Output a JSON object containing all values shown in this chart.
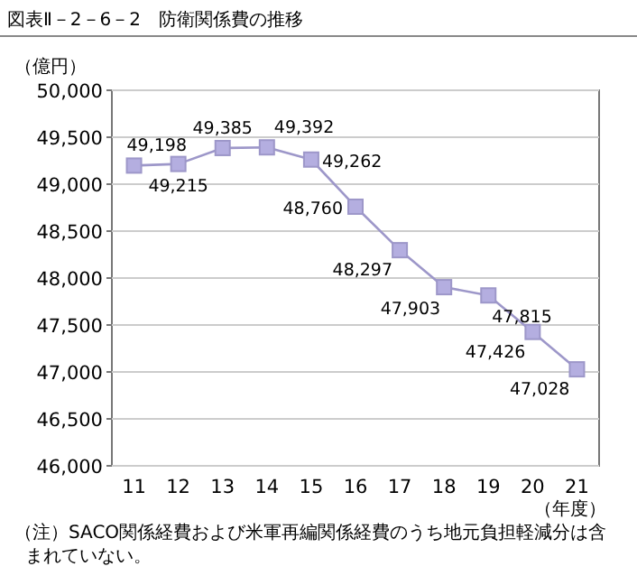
{
  "chart_data": {
    "type": "line",
    "title": "図表Ⅱ－2－6－2　防衛関係費の推移",
    "ylabel": "（億円）",
    "xlabel": "（年度）",
    "categories": [
      "11",
      "12",
      "13",
      "14",
      "15",
      "16",
      "17",
      "18",
      "19",
      "20",
      "21"
    ],
    "series": [
      {
        "color": "#9d97c9",
        "values": [
          49198,
          49215,
          49385,
          49392,
          49262,
          48760,
          48297,
          47903,
          47815,
          47426,
          47028
        ]
      }
    ],
    "ylim": [
      46000,
      50000
    ],
    "yticks": [
      {
        "value": 46000,
        "label": "46,000"
      },
      {
        "value": 46500,
        "label": "46,500"
      },
      {
        "value": 47000,
        "label": "47,000"
      },
      {
        "value": 47500,
        "label": "47,500"
      },
      {
        "value": 48000,
        "label": "48,000"
      },
      {
        "value": 48500,
        "label": "48,500"
      },
      {
        "value": 49000,
        "label": "49,000"
      },
      {
        "value": 49500,
        "label": "49,500"
      },
      {
        "value": 50000,
        "label": "50,000"
      }
    ],
    "value_labels": [
      "49,198",
      "49,215",
      "49,385",
      "49,392",
      "49,262",
      "48,760",
      "48,297",
      "47,903",
      "47,815",
      "47,426",
      "47,028"
    ],
    "grid": "y",
    "marker": "square",
    "line_style": "solid",
    "annotations": [
      "（注）SACO関係経費および米軍再編関係経費のうち地元負担軽減分は含まれていない。"
    ]
  }
}
